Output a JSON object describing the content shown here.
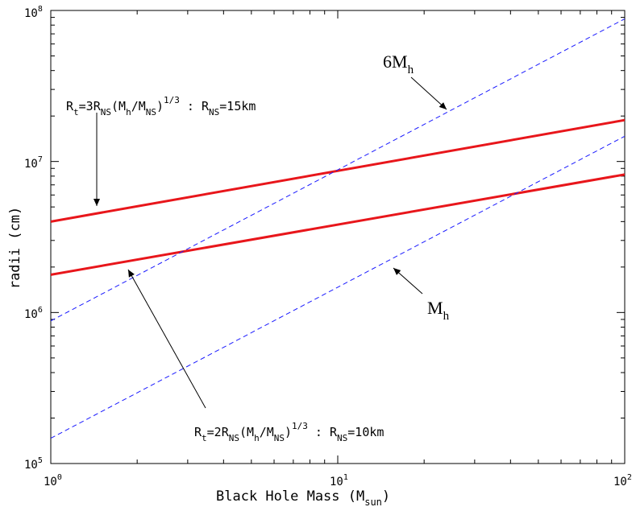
{
  "chart_data": {
    "type": "line",
    "xlabel": "Black Hole Mass (M",
    "xlabel_sub": "sun",
    "xlabel_close": ")",
    "ylabel": "radii (cm)",
    "x_scale": "log",
    "y_scale": "log",
    "xlim": [
      1,
      100
    ],
    "ylim": [
      100000,
      100000000
    ],
    "x_ticks": [
      {
        "base": "10",
        "exp": "0"
      },
      {
        "base": "10",
        "exp": "1"
      },
      {
        "base": "10",
        "exp": "2"
      }
    ],
    "y_ticks": [
      {
        "base": "10",
        "exp": "5"
      },
      {
        "base": "10",
        "exp": "6"
      },
      {
        "base": "10",
        "exp": "7"
      },
      {
        "base": "10",
        "exp": "8"
      }
    ],
    "series": [
      {
        "x": [
          1,
          100
        ],
        "y": [
          4000000,
          18800000
        ],
        "color": "#e8161b",
        "style": "solid"
      },
      {
        "x": [
          1,
          100
        ],
        "y": [
          1780000,
          8200000
        ],
        "color": "#e8161b",
        "style": "solid"
      },
      {
        "x": [
          1,
          100
        ],
        "y": [
          880000,
          88000000
        ],
        "color": "#1a1aff",
        "style": "dashed"
      },
      {
        "x": [
          1,
          100
        ],
        "y": [
          147000,
          14700000
        ],
        "color": "#1a1aff",
        "style": "dashed"
      }
    ],
    "annotations": {
      "upper_formula": {
        "p1": "R",
        "p1_sub": "t",
        "p2": "=3R",
        "p2_sub": "NS",
        "p3": "(M",
        "p3_sub": "h",
        "p4": "/M",
        "p4_sub": "NS",
        "p5": ")",
        "p5_sup": "1/3",
        "p6": " : R",
        "p6_sub": "NS",
        "p7": "=15km"
      },
      "lower_formula": {
        "p1": "R",
        "p1_sub": "t",
        "p2": "=2R",
        "p2_sub": "NS",
        "p3": "(M",
        "p3_sub": "h",
        "p4": "/M",
        "p4_sub": "NS",
        "p5": ")",
        "p5_sup": "1/3",
        "p6": " :  R",
        "p6_sub": "NS",
        "p7": "=10km"
      },
      "six_mh": {
        "main": "6M",
        "sub": "h"
      },
      "mh": {
        "main": "M",
        "sub": "h"
      }
    }
  }
}
